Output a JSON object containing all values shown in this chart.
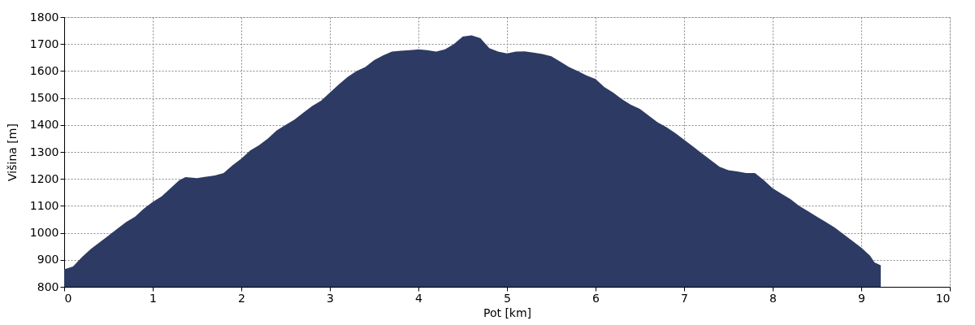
{
  "chart_data": {
    "type": "area",
    "xlabel": "Pot [km]",
    "ylabel": "Višina [m]",
    "x": [
      0,
      0.1,
      0.2,
      0.3,
      0.4,
      0.5,
      0.6,
      0.7,
      0.8,
      0.9,
      1.0,
      1.1,
      1.2,
      1.3,
      1.37,
      1.5,
      1.6,
      1.7,
      1.8,
      1.9,
      2.0,
      2.1,
      2.2,
      2.3,
      2.4,
      2.5,
      2.6,
      2.7,
      2.8,
      2.9,
      3.0,
      3.1,
      3.2,
      3.3,
      3.4,
      3.5,
      3.6,
      3.7,
      3.8,
      3.9,
      4.0,
      4.1,
      4.2,
      4.3,
      4.4,
      4.5,
      4.6,
      4.7,
      4.8,
      4.9,
      5.0,
      5.1,
      5.2,
      5.3,
      5.4,
      5.5,
      5.6,
      5.7,
      5.8,
      5.9,
      6.0,
      6.1,
      6.2,
      6.3,
      6.4,
      6.5,
      6.6,
      6.7,
      6.8,
      6.9,
      7.0,
      7.1,
      7.2,
      7.3,
      7.4,
      7.5,
      7.6,
      7.7,
      7.8,
      7.9,
      8.0,
      8.1,
      8.2,
      8.3,
      8.4,
      8.5,
      8.6,
      8.7,
      8.8,
      8.9,
      9.0,
      9.1,
      9.15,
      9.22
    ],
    "series": [
      {
        "color": "#2d3a64",
        "values": [
          865,
          875,
          910,
          940,
          965,
          990,
          1015,
          1040,
          1060,
          1090,
          1115,
          1135,
          1165,
          1195,
          1207,
          1203,
          1208,
          1213,
          1222,
          1250,
          1275,
          1305,
          1325,
          1350,
          1380,
          1400,
          1420,
          1445,
          1470,
          1490,
          1520,
          1550,
          1578,
          1600,
          1615,
          1640,
          1658,
          1672,
          1675,
          1677,
          1680,
          1677,
          1672,
          1680,
          1700,
          1728,
          1732,
          1722,
          1685,
          1672,
          1665,
          1672,
          1673,
          1668,
          1663,
          1655,
          1635,
          1615,
          1600,
          1583,
          1570,
          1540,
          1520,
          1495,
          1475,
          1460,
          1435,
          1410,
          1392,
          1370,
          1345,
          1320,
          1295,
          1270,
          1245,
          1232,
          1228,
          1222,
          1222,
          1195,
          1165,
          1145,
          1125,
          1100,
          1080,
          1060,
          1040,
          1020,
          995,
          970,
          945,
          915,
          890,
          880
        ]
      }
    ],
    "xlim": [
      0,
      10
    ],
    "xticks": [
      0,
      1,
      2,
      3,
      4,
      5,
      6,
      7,
      8,
      9,
      10
    ],
    "ylim": [
      800,
      1800
    ],
    "yticks": [
      800,
      900,
      1000,
      1100,
      1200,
      1300,
      1400,
      1500,
      1600,
      1700,
      1800
    ],
    "grid": true
  }
}
